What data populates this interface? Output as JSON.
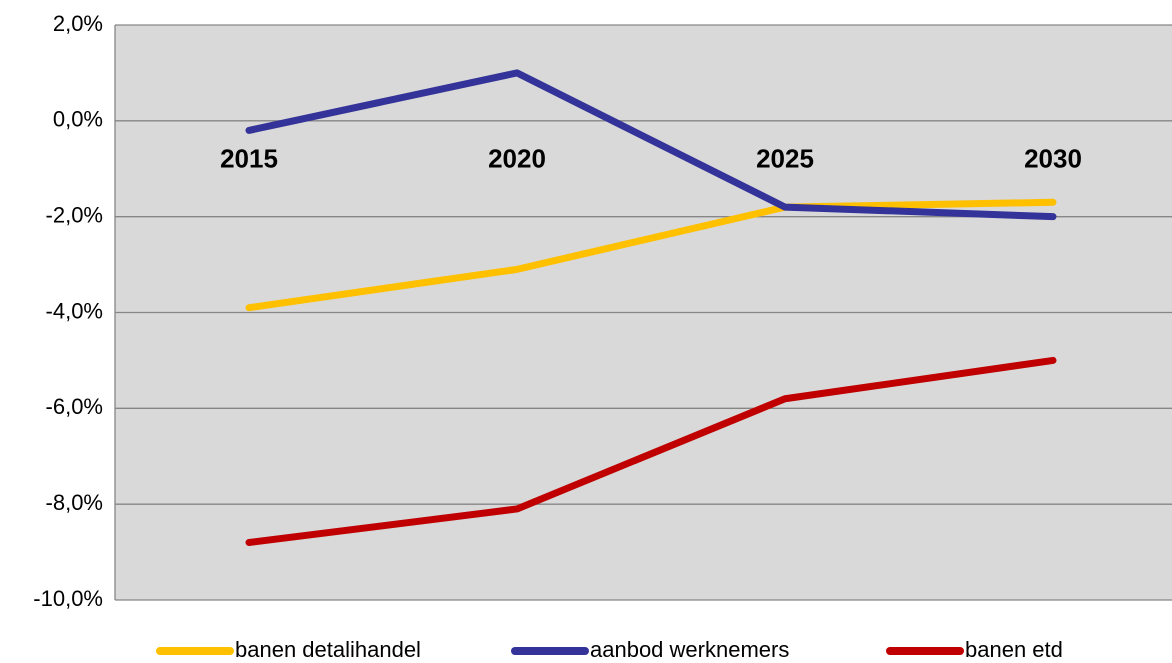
{
  "chart_data": {
    "type": "line",
    "categories": [
      "2015",
      "2020",
      "2025",
      "2030"
    ],
    "series": [
      {
        "name": "banen detalihandel",
        "color": "#ffc000",
        "values": [
          -3.9,
          -3.1,
          -1.8,
          -1.7
        ]
      },
      {
        "name": "aanbod werknemers",
        "color": "#333399",
        "values": [
          -0.2,
          1.0,
          -1.8,
          -2.0
        ]
      },
      {
        "name": "banen etd",
        "color": "#c00000",
        "values": [
          -8.8,
          -8.1,
          -5.8,
          -5.0
        ]
      }
    ],
    "ylim": [
      -10,
      2
    ],
    "yticks": [
      {
        "value": -10,
        "label": "-10,0%"
      },
      {
        "value": -8,
        "label": "-8,0%"
      },
      {
        "value": -6,
        "label": "-6,0%"
      },
      {
        "value": -4,
        "label": "-4,0%"
      },
      {
        "value": -2,
        "label": "-2,0%"
      },
      {
        "value": 0,
        "label": "0,0%"
      },
      {
        "value": 2,
        "label": "2,0%"
      }
    ],
    "grid": true,
    "legend": "bottom"
  }
}
